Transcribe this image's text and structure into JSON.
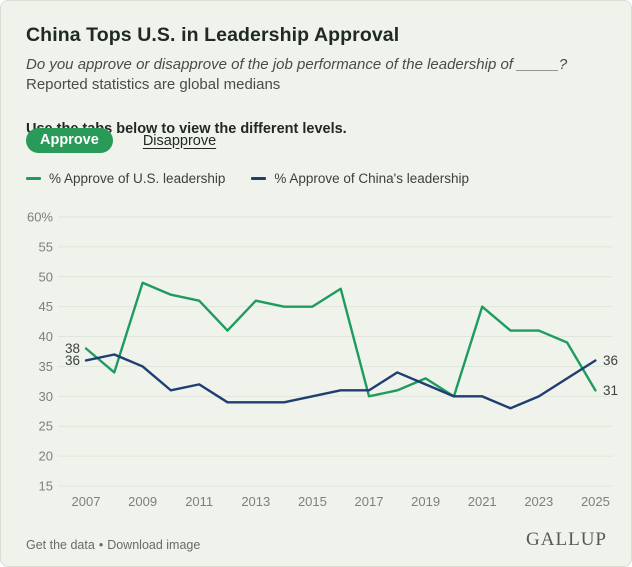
{
  "header": {
    "title": "China Tops U.S. in Leadership Approval",
    "question": "Do you approve or disapprove of the job performance of the leadership of _____?",
    "note": "Reported statistics are global medians"
  },
  "tabs": {
    "hint": "Use the tabs below to view the different levels.",
    "active_tab": "Approve",
    "active_bg": "#2a9a59",
    "items": [
      {
        "label": "Approve",
        "active": true
      },
      {
        "label": "Disapprove",
        "active": false
      }
    ]
  },
  "legend": {
    "items": [
      {
        "label": "% Approve of U.S. leadership",
        "color": "#1e9c5e"
      },
      {
        "label": "% Approve of China's leadership",
        "color": "#1f3e71"
      }
    ]
  },
  "chart_data": {
    "type": "line",
    "title": "China Tops U.S. in Leadership Approval",
    "x": [
      2007,
      2008,
      2009,
      2010,
      2011,
      2012,
      2013,
      2014,
      2015,
      2016,
      2017,
      2018,
      2019,
      2020,
      2021,
      2022,
      2023,
      2024,
      2025
    ],
    "series": [
      {
        "name": "% Approve of U.S. leadership",
        "color": "#1e9c5e",
        "values": [
          38,
          34,
          49,
          47,
          46,
          41,
          46,
          45,
          45,
          48,
          30,
          31,
          33,
          30,
          45,
          41,
          41,
          39,
          31
        ]
      },
      {
        "name": "% Approve of China's leadership",
        "color": "#1f3e71",
        "values": [
          36,
          37,
          35,
          31,
          32,
          29,
          29,
          29,
          30,
          31,
          31,
          34,
          32,
          30,
          30,
          28,
          30,
          33,
          36
        ]
      }
    ],
    "ylim": [
      15,
      60
    ],
    "yticks": [
      60,
      55,
      50,
      45,
      40,
      35,
      30,
      25,
      20,
      15
    ],
    "ytick_labels": [
      "60%",
      "55",
      "50",
      "45",
      "40",
      "35",
      "30",
      "25",
      "20",
      "15"
    ],
    "xticks": [
      2007,
      2009,
      2011,
      2013,
      2015,
      2017,
      2019,
      2021,
      2023,
      2025
    ],
    "grid": "horizontal",
    "gridline_color": "#e0e6db",
    "annotations": [
      {
        "text": "38",
        "year": 2007,
        "value": 38,
        "side": "left"
      },
      {
        "text": "36",
        "year": 2007,
        "value": 36,
        "side": "left"
      },
      {
        "text": "36",
        "year": 2025,
        "value": 36,
        "side": "right"
      },
      {
        "text": "31",
        "year": 2025,
        "value": 31,
        "side": "right"
      }
    ]
  },
  "footer": {
    "link1": "Get the data",
    "separator": "•",
    "link2": "Download image",
    "brand": "GALLUP"
  }
}
